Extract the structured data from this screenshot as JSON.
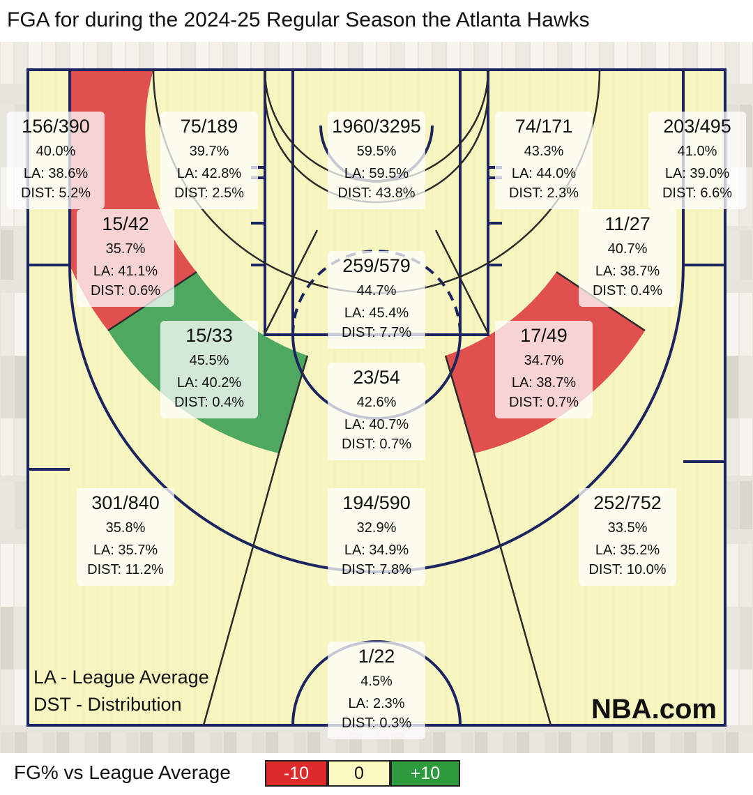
{
  "title": "FGA for during the 2024-25 Regular Season the Atlanta Hawks",
  "branding": "NBA.com",
  "notes": [
    "LA - League Average",
    "DST - Distribution"
  ],
  "legend": {
    "label": "FG% vs League Average",
    "items": [
      {
        "label": "-10",
        "color": "#dd2a2a"
      },
      {
        "label": "0",
        "color": "#fafac0"
      },
      {
        "label": "+10",
        "color": "#2e9a3e"
      }
    ]
  },
  "colors": {
    "court_line": "#1c2560",
    "cold": "#e0504f",
    "neutral": "#f8f6c0",
    "hot": "#4fa860",
    "card": "#ffffff"
  },
  "chart_data": {
    "type": "shot_chart",
    "team": "Atlanta Hawks",
    "season": "2024-25 Regular Season",
    "zones": [
      {
        "id": "left-corner-3",
        "made": 156,
        "attempts": 390,
        "fga": "156/390",
        "fg_pct": "40.0%",
        "la": "LA: 38.6%",
        "dist": "DIST: 5.2%",
        "status": "neutral"
      },
      {
        "id": "left-wing-midrange",
        "made": 75,
        "attempts": 189,
        "fga": "75/189",
        "fg_pct": "39.7%",
        "la": "LA: 42.8%",
        "dist": "DIST: 2.5%",
        "status": "neutral"
      },
      {
        "id": "restricted-area",
        "made": 1960,
        "attempts": 3295,
        "fga": "1960/3295",
        "fg_pct": "59.5%",
        "la": "LA: 59.5%",
        "dist": "DIST: 43.8%",
        "status": "neutral"
      },
      {
        "id": "right-wing-midrange",
        "made": 74,
        "attempts": 171,
        "fga": "74/171",
        "fg_pct": "43.3%",
        "la": "LA: 44.0%",
        "dist": "DIST: 2.3%",
        "status": "neutral"
      },
      {
        "id": "right-corner-3",
        "made": 203,
        "attempts": 495,
        "fga": "203/495",
        "fg_pct": "41.0%",
        "la": "LA: 39.0%",
        "dist": "DIST: 6.6%",
        "status": "neutral"
      },
      {
        "id": "left-baseline-midrange",
        "made": 15,
        "attempts": 42,
        "fga": "15/42",
        "fg_pct": "35.7%",
        "la": "LA: 41.1%",
        "dist": "DIST: 0.6%",
        "status": "cold"
      },
      {
        "id": "paint-non-ra",
        "made": 259,
        "attempts": 579,
        "fga": "259/579",
        "fg_pct": "44.7%",
        "la": "LA: 45.4%",
        "dist": "DIST: 7.7%",
        "status": "neutral"
      },
      {
        "id": "right-baseline-midrange",
        "made": 11,
        "attempts": 27,
        "fga": "11/27",
        "fg_pct": "40.7%",
        "la": "LA: 38.7%",
        "dist": "DIST: 0.4%",
        "status": "neutral"
      },
      {
        "id": "left-elbow-midrange",
        "made": 15,
        "attempts": 33,
        "fga": "15/33",
        "fg_pct": "45.5%",
        "la": "LA: 40.2%",
        "dist": "DIST: 0.4%",
        "status": "hot"
      },
      {
        "id": "top-key-midrange",
        "made": 23,
        "attempts": 54,
        "fga": "23/54",
        "fg_pct": "42.6%",
        "la": "LA: 40.7%",
        "dist": "DIST: 0.7%",
        "status": "neutral"
      },
      {
        "id": "right-elbow-midrange",
        "made": 17,
        "attempts": 49,
        "fga": "17/49",
        "fg_pct": "34.7%",
        "la": "LA: 38.7%",
        "dist": "DIST: 0.7%",
        "status": "cold"
      },
      {
        "id": "left-wing-3",
        "made": 301,
        "attempts": 840,
        "fga": "301/840",
        "fg_pct": "35.8%",
        "la": "LA: 35.7%",
        "dist": "DIST: 11.2%",
        "status": "neutral"
      },
      {
        "id": "top-3",
        "made": 194,
        "attempts": 590,
        "fga": "194/590",
        "fg_pct": "32.9%",
        "la": "LA: 34.9%",
        "dist": "DIST: 7.8%",
        "status": "neutral"
      },
      {
        "id": "right-wing-3",
        "made": 252,
        "attempts": 752,
        "fga": "252/752",
        "fg_pct": "33.5%",
        "la": "LA: 35.2%",
        "dist": "DIST: 10.0%",
        "status": "neutral"
      },
      {
        "id": "backcourt",
        "made": 1,
        "attempts": 22,
        "fga": "1/22",
        "fg_pct": "4.5%",
        "la": "LA: 2.3%",
        "dist": "DIST: 0.3%",
        "status": "neutral"
      }
    ]
  }
}
